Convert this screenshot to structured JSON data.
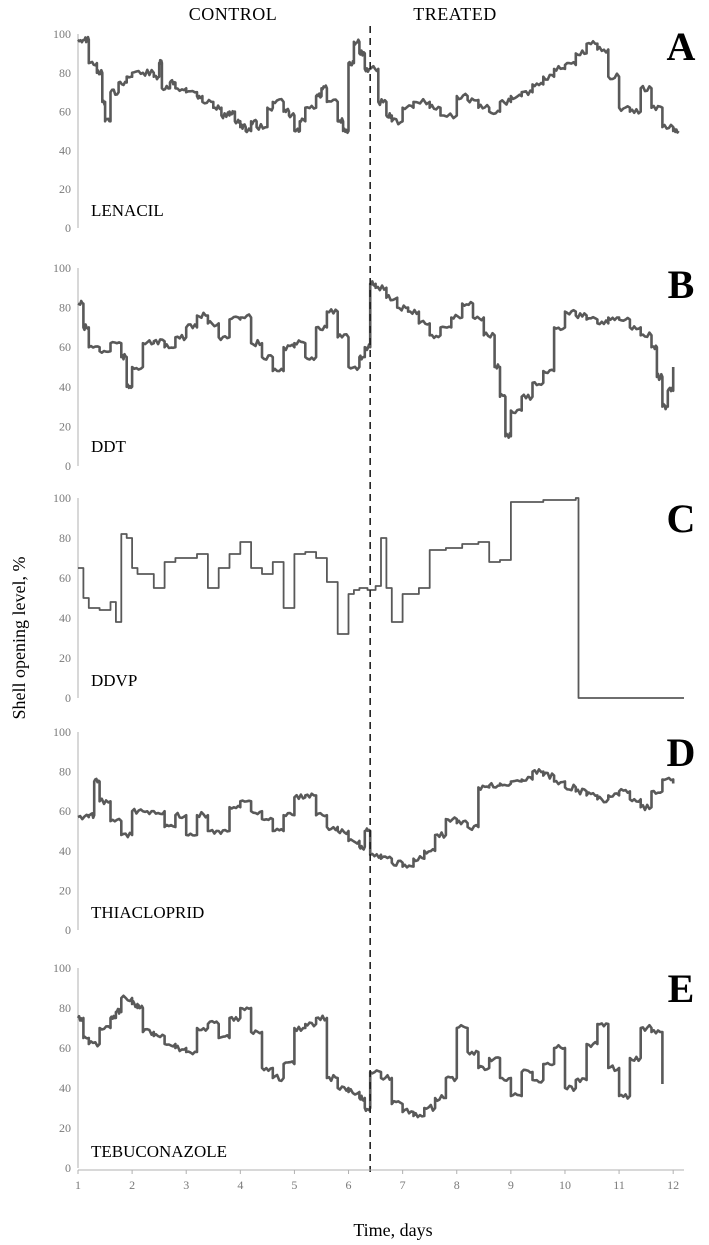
{
  "figure": {
    "control_label": "CONTROL",
    "treated_label": "TREATED",
    "ylabel": "Shell opening level, %",
    "xlabel": "Time, days",
    "x_ticks": [
      "1",
      "2",
      "3",
      "4",
      "5",
      "6",
      "7",
      "8",
      "9",
      "10",
      "11",
      "12"
    ],
    "y_ticks": [
      "0",
      "20",
      "40",
      "60",
      "80",
      "100"
    ],
    "trace_color": "#595959"
  },
  "chart_data": [
    {
      "type": "line",
      "panel": "A",
      "label": "LENACIL",
      "xlim": [
        1,
        12.2
      ],
      "ylim": [
        0,
        100
      ],
      "treatment_x": 6.4,
      "x": [
        1.0,
        1.12,
        1.2,
        1.35,
        1.45,
        1.5,
        1.6,
        1.75,
        1.9,
        2.0,
        2.2,
        2.4,
        2.5,
        2.55,
        2.7,
        2.8,
        3.0,
        3.2,
        3.3,
        3.5,
        3.65,
        3.8,
        3.9,
        4.0,
        4.1,
        4.2,
        4.3,
        4.5,
        4.6,
        4.8,
        4.9,
        5.0,
        5.1,
        5.2,
        5.4,
        5.5,
        5.6,
        5.8,
        5.9,
        6.0,
        6.1,
        6.2,
        6.3,
        6.4,
        6.55,
        6.7,
        6.8,
        7.0,
        7.2,
        7.5,
        7.7,
        8.0,
        8.2,
        8.4,
        8.6,
        8.8,
        9.0,
        9.2,
        9.4,
        9.6,
        9.8,
        10.0,
        10.2,
        10.4,
        10.6,
        10.8,
        11.0,
        11.2,
        11.4,
        11.6,
        11.8,
        12.0,
        12.1
      ],
      "y": [
        97,
        97,
        85,
        80,
        65,
        55,
        70,
        75,
        78,
        80,
        80,
        78,
        85,
        72,
        75,
        72,
        70,
        68,
        65,
        62,
        58,
        60,
        55,
        52,
        50,
        55,
        52,
        62,
        65,
        60,
        58,
        50,
        55,
        62,
        68,
        72,
        65,
        55,
        50,
        85,
        96,
        90,
        82,
        82,
        65,
        58,
        55,
        62,
        65,
        62,
        58,
        68,
        66,
        62,
        60,
        65,
        68,
        70,
        74,
        78,
        82,
        84,
        90,
        95,
        92,
        78,
        62,
        60,
        72,
        62,
        52,
        50,
        50
      ]
    },
    {
      "type": "line",
      "panel": "B",
      "label": "DDT",
      "xlim": [
        1,
        12.2
      ],
      "ylim": [
        0,
        100
      ],
      "treatment_x": 6.4,
      "x": [
        1.0,
        1.1,
        1.2,
        1.4,
        1.6,
        1.8,
        1.9,
        2.0,
        2.2,
        2.4,
        2.6,
        2.8,
        3.0,
        3.2,
        3.4,
        3.6,
        3.8,
        4.0,
        4.2,
        4.4,
        4.6,
        4.8,
        5.0,
        5.2,
        5.4,
        5.6,
        5.8,
        6.0,
        6.2,
        6.3,
        6.4,
        6.5,
        6.7,
        6.9,
        7.1,
        7.3,
        7.5,
        7.7,
        7.9,
        8.1,
        8.3,
        8.5,
        8.7,
        8.8,
        8.9,
        9.0,
        9.2,
        9.4,
        9.6,
        9.8,
        10.0,
        10.2,
        10.4,
        10.6,
        10.8,
        11.0,
        11.2,
        11.4,
        11.6,
        11.7,
        11.8,
        11.9,
        12.0
      ],
      "y": [
        82,
        70,
        60,
        58,
        62,
        55,
        40,
        50,
        62,
        63,
        60,
        65,
        70,
        76,
        72,
        65,
        74,
        75,
        62,
        55,
        48,
        60,
        62,
        55,
        70,
        78,
        65,
        50,
        55,
        60,
        92,
        90,
        85,
        80,
        78,
        72,
        66,
        70,
        75,
        82,
        75,
        66,
        50,
        35,
        15,
        28,
        35,
        42,
        48,
        70,
        78,
        76,
        74,
        72,
        75,
        74,
        70,
        66,
        60,
        45,
        30,
        38,
        50
      ]
    },
    {
      "type": "line",
      "panel": "C",
      "label": "DDVP",
      "xlim": [
        1,
        12.2
      ],
      "ylim": [
        0,
        100
      ],
      "treatment_x": 6.4,
      "x": [
        1.0,
        1.1,
        1.2,
        1.4,
        1.6,
        1.7,
        1.8,
        1.9,
        2.0,
        2.1,
        2.2,
        2.4,
        2.6,
        2.8,
        3.0,
        3.2,
        3.4,
        3.6,
        3.8,
        4.0,
        4.2,
        4.4,
        4.6,
        4.8,
        5.0,
        5.2,
        5.4,
        5.6,
        5.8,
        6.0,
        6.1,
        6.2,
        6.35,
        6.5,
        6.6,
        6.7,
        6.8,
        7.0,
        7.3,
        7.5,
        7.8,
        8.1,
        8.4,
        8.6,
        8.8,
        9.0,
        9.3,
        9.6,
        9.9,
        10.2,
        10.25,
        10.5,
        12.2
      ],
      "y": [
        65,
        50,
        45,
        44,
        48,
        38,
        82,
        80,
        65,
        62,
        62,
        55,
        68,
        70,
        70,
        72,
        55,
        65,
        72,
        78,
        65,
        62,
        68,
        45,
        72,
        73,
        70,
        58,
        32,
        52,
        54,
        55,
        54,
        56,
        80,
        55,
        38,
        52,
        55,
        74,
        75,
        77,
        78,
        68,
        69,
        98,
        98,
        99,
        99,
        100,
        0,
        0,
        0
      ]
    },
    {
      "type": "line",
      "panel": "D",
      "label": "THIACLOPRID",
      "xlim": [
        1,
        12.2
      ],
      "ylim": [
        0,
        100
      ],
      "treatment_x": 6.4,
      "x": [
        1.0,
        1.2,
        1.3,
        1.4,
        1.6,
        1.8,
        2.0,
        2.2,
        2.4,
        2.6,
        2.8,
        3.0,
        3.2,
        3.4,
        3.6,
        3.8,
        4.0,
        4.2,
        4.4,
        4.6,
        4.8,
        5.0,
        5.2,
        5.4,
        5.6,
        5.8,
        6.0,
        6.2,
        6.3,
        6.4,
        6.6,
        6.8,
        7.0,
        7.2,
        7.4,
        7.6,
        7.8,
        8.0,
        8.2,
        8.4,
        8.6,
        8.8,
        9.0,
        9.2,
        9.4,
        9.6,
        9.8,
        10.0,
        10.2,
        10.4,
        10.6,
        10.8,
        11.0,
        11.2,
        11.4,
        11.6,
        11.8,
        12.0
      ],
      "y": [
        57,
        58,
        75,
        65,
        55,
        48,
        60,
        60,
        60,
        52,
        58,
        48,
        58,
        50,
        50,
        62,
        65,
        60,
        56,
        50,
        58,
        67,
        68,
        58,
        52,
        50,
        45,
        42,
        50,
        38,
        36,
        34,
        32,
        36,
        40,
        48,
        56,
        54,
        52,
        72,
        73,
        74,
        75,
        76,
        80,
        78,
        75,
        72,
        70,
        68,
        66,
        68,
        70,
        66,
        62,
        70,
        76,
        74
      ]
    },
    {
      "type": "line",
      "panel": "E",
      "label": "TEBUCONAZOLE",
      "xlim": [
        1,
        12.2
      ],
      "ylim": [
        0,
        100
      ],
      "treatment_x": 6.4,
      "x": [
        1.0,
        1.1,
        1.2,
        1.4,
        1.6,
        1.7,
        1.8,
        2.0,
        2.1,
        2.2,
        2.4,
        2.6,
        2.8,
        3.0,
        3.2,
        3.4,
        3.6,
        3.8,
        4.0,
        4.2,
        4.4,
        4.6,
        4.8,
        5.0,
        5.2,
        5.4,
        5.6,
        5.8,
        6.0,
        6.2,
        6.3,
        6.4,
        6.6,
        6.8,
        7.0,
        7.2,
        7.4,
        7.6,
        7.8,
        8.0,
        8.2,
        8.4,
        8.6,
        8.8,
        9.0,
        9.2,
        9.4,
        9.6,
        9.8,
        10.0,
        10.2,
        10.4,
        10.6,
        10.8,
        11.0,
        11.2,
        11.4,
        11.6,
        11.8
      ],
      "y": [
        75,
        65,
        62,
        70,
        75,
        78,
        85,
        82,
        80,
        68,
        66,
        62,
        60,
        58,
        70,
        72,
        65,
        75,
        80,
        68,
        50,
        45,
        52,
        70,
        72,
        75,
        45,
        40,
        38,
        35,
        30,
        48,
        45,
        32,
        28,
        26,
        30,
        35,
        45,
        70,
        58,
        50,
        55,
        45,
        36,
        48,
        44,
        52,
        60,
        40,
        44,
        62,
        72,
        50,
        36,
        55,
        70,
        68,
        42
      ]
    }
  ]
}
